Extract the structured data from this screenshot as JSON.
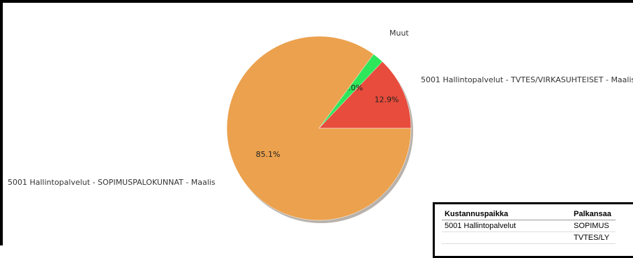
{
  "chart_data": {
    "type": "pie",
    "title": "",
    "slices": [
      {
        "label": "5001 Hallintopalvelut - TVTES/VIRKASUHTEISET - Maalis",
        "value": 12.9,
        "display": "12.9%",
        "color": "#e74c3c"
      },
      {
        "label": "Muut",
        "value": 2.0,
        "display": "2.0%",
        "color": "#2ee65a"
      },
      {
        "label": "5001 Hallintopalvelut - SOPIMUSPALOKUNNAT - Maalis",
        "value": 85.1,
        "display": "85.1%",
        "color": "#eba14d"
      }
    ],
    "legend": "outside-labels"
  },
  "table": {
    "headers": [
      "Kustannuspaikka",
      "Palkansaa"
    ],
    "rows": [
      [
        "5001 Hallintopalvelut",
        "SOPIMUS"
      ],
      [
        "",
        "TVTES/LY"
      ]
    ]
  }
}
